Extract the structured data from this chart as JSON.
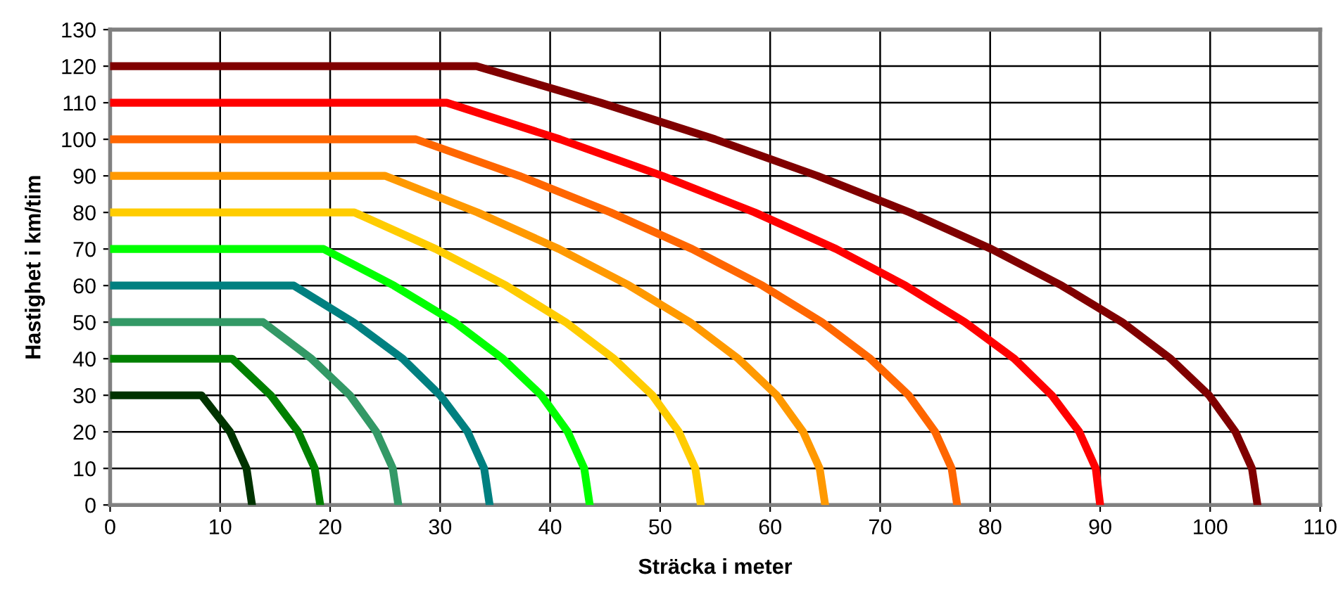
{
  "chart_data": {
    "type": "line",
    "xlabel": "Sträcka i meter",
    "ylabel": "Hastighet i km/tim",
    "xlim": [
      0,
      110
    ],
    "ylim": [
      0,
      130
    ],
    "xticks": [
      0,
      10,
      20,
      30,
      40,
      50,
      60,
      70,
      80,
      90,
      100,
      110
    ],
    "yticks": [
      0,
      10,
      20,
      30,
      40,
      50,
      60,
      70,
      80,
      90,
      100,
      110,
      120,
      130
    ],
    "grid": true,
    "legend": false,
    "marker": "none",
    "line_style": "solid",
    "series": [
      {
        "color": "#003300",
        "x": [
          0,
          8.3,
          10.9,
          12.4,
          12.9
        ],
        "values": [
          30,
          30,
          20,
          10,
          0
        ]
      },
      {
        "color": "#008000",
        "x": [
          0,
          11.1,
          14.6,
          17.1,
          18.6,
          19.1
        ],
        "values": [
          40,
          40,
          30,
          20,
          10,
          0
        ]
      },
      {
        "color": "#339966",
        "x": [
          0,
          13.9,
          18.3,
          21.8,
          24.2,
          25.7,
          26.2
        ],
        "values": [
          50,
          50,
          40,
          30,
          20,
          10,
          0
        ]
      },
      {
        "color": "#008080",
        "x": [
          0,
          16.7,
          22.1,
          26.6,
          30.0,
          32.5,
          34.0,
          34.5
        ],
        "values": [
          60,
          60,
          50,
          40,
          30,
          20,
          10,
          0
        ]
      },
      {
        "color": "#00ff00",
        "x": [
          0,
          19.4,
          25.8,
          31.3,
          35.7,
          39.2,
          41.6,
          43.1,
          43.6
        ],
        "values": [
          70,
          70,
          60,
          50,
          40,
          30,
          20,
          10,
          0
        ]
      },
      {
        "color": "#ffcc00",
        "x": [
          0,
          22.2,
          29.6,
          36.0,
          41.4,
          45.8,
          49.3,
          51.7,
          53.2,
          53.7
        ],
        "values": [
          80,
          80,
          70,
          60,
          50,
          40,
          30,
          20,
          10,
          0
        ]
      },
      {
        "color": "#ff9900",
        "x": [
          0,
          25.0,
          33.4,
          40.8,
          47.2,
          52.7,
          57.1,
          60.6,
          63.0,
          64.5,
          65.0
        ],
        "values": [
          90,
          90,
          80,
          70,
          60,
          50,
          40,
          30,
          20,
          10,
          0
        ]
      },
      {
        "color": "#ff6600",
        "x": [
          0,
          27.8,
          37.2,
          45.5,
          52.9,
          59.3,
          64.7,
          69.1,
          72.6,
          75.0,
          76.5,
          77.0
        ],
        "values": [
          100,
          100,
          90,
          80,
          70,
          60,
          50,
          40,
          30,
          20,
          10,
          0
        ]
      },
      {
        "color": "#ff0000",
        "x": [
          0,
          30.6,
          40.9,
          50.2,
          58.6,
          66.0,
          72.3,
          77.7,
          82.2,
          85.6,
          88.1,
          89.6,
          90.0
        ],
        "values": [
          110,
          110,
          100,
          90,
          80,
          70,
          60,
          50,
          40,
          30,
          20,
          10,
          0
        ]
      },
      {
        "color": "#800000",
        "x": [
          0,
          33.3,
          44.6,
          55.0,
          64.3,
          72.7,
          80.1,
          86.5,
          92.0,
          96.4,
          99.9,
          102.3,
          103.8,
          104.3
        ],
        "values": [
          120,
          120,
          110,
          100,
          90,
          80,
          70,
          60,
          50,
          40,
          30,
          20,
          10,
          0
        ]
      }
    ]
  }
}
